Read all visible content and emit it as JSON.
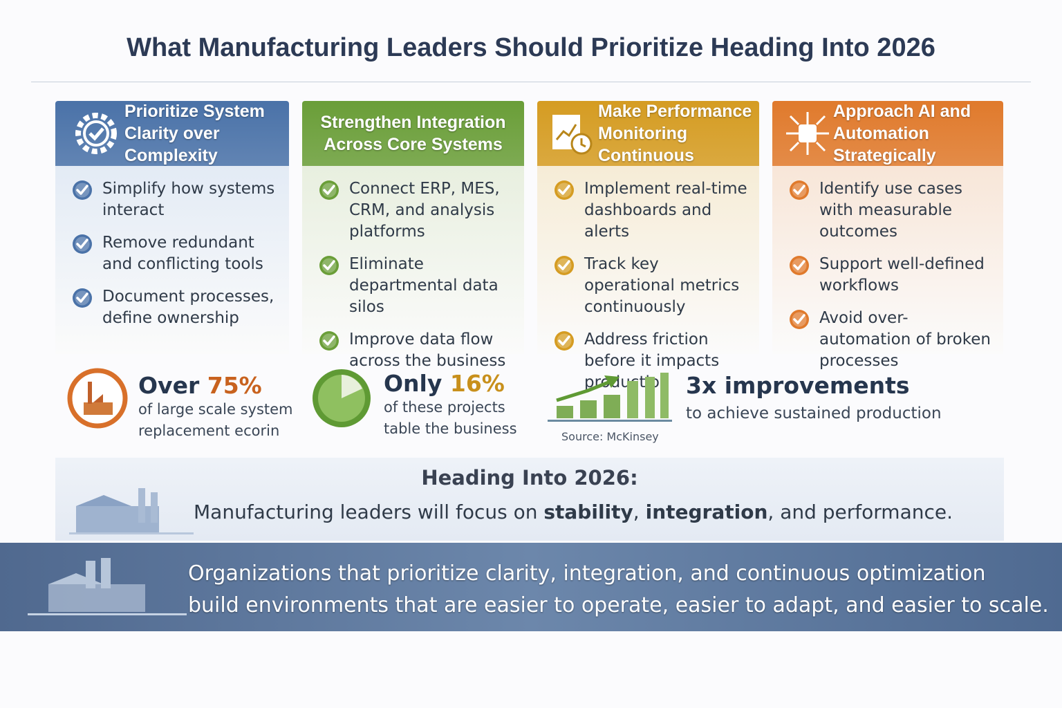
{
  "title": "What Manufacturing Leaders Should Prioritize Heading Into 2026",
  "columns": [
    {
      "heading": [
        "Prioritize System",
        "Clarity over Complexity"
      ],
      "color": "#4a72a8",
      "body": "#e3ebf5",
      "items": [
        "Simplify how systems interact",
        "Remove redundant and conflicting tools",
        "Document processes, define ownership"
      ]
    },
    {
      "heading": [
        "Strengthen Integration",
        "Across Core Systems"
      ],
      "color": "#6a9e38",
      "body": "#e8efdf",
      "items": [
        "Connect ERP, MES, CRM, and analysis platforms",
        "Eliminate departmental data silos",
        "Improve data flow across the business"
      ]
    },
    {
      "heading": [
        "Make Performance",
        "Monitoring Continuous"
      ],
      "color": "#d59c22",
      "body": "#f6ecd6",
      "items": [
        "Implement real-time dashboards and alerts",
        "Track key operational metrics continuously",
        "Address friction before it impacts production"
      ]
    },
    {
      "heading": [
        "Approach AI and",
        "Automation Strategically"
      ],
      "color": "#e07a2c",
      "body": "#f8e6d8",
      "items": [
        "Identify use cases with measurable outcomes",
        "Support well-defined workflows",
        "Avoid over-automation of broken processes"
      ]
    }
  ],
  "stats": [
    {
      "lead": "Over",
      "figure": "75%",
      "figure_color": "#c8621e",
      "lines": [
        "of large scale system",
        "replacement ecorin"
      ]
    },
    {
      "lead": "Only",
      "figure": "16%",
      "figure_color": "#c8901c",
      "lines": [
        "of these projects",
        "table the business"
      ]
    },
    {
      "lead": "3x improvements",
      "lines": [
        "to achieve sustained production"
      ],
      "source": "Source: McKinsey"
    }
  ],
  "outlook": {
    "heading": "Heading Into 2026:",
    "sentence": [
      {
        "text": "Manufacturing leaders will focus on ",
        "bold": false
      },
      {
        "text": "stability",
        "bold": true
      },
      {
        "text": ", ",
        "bold": false
      },
      {
        "text": "integration",
        "bold": true
      },
      {
        "text": ", and performance.",
        "bold": false
      }
    ]
  },
  "footer": [
    "Organizations that prioritize clarity, integration, and continuous optimization",
    "build environments that are easier to operate, easier to adapt, and easier to scale."
  ]
}
